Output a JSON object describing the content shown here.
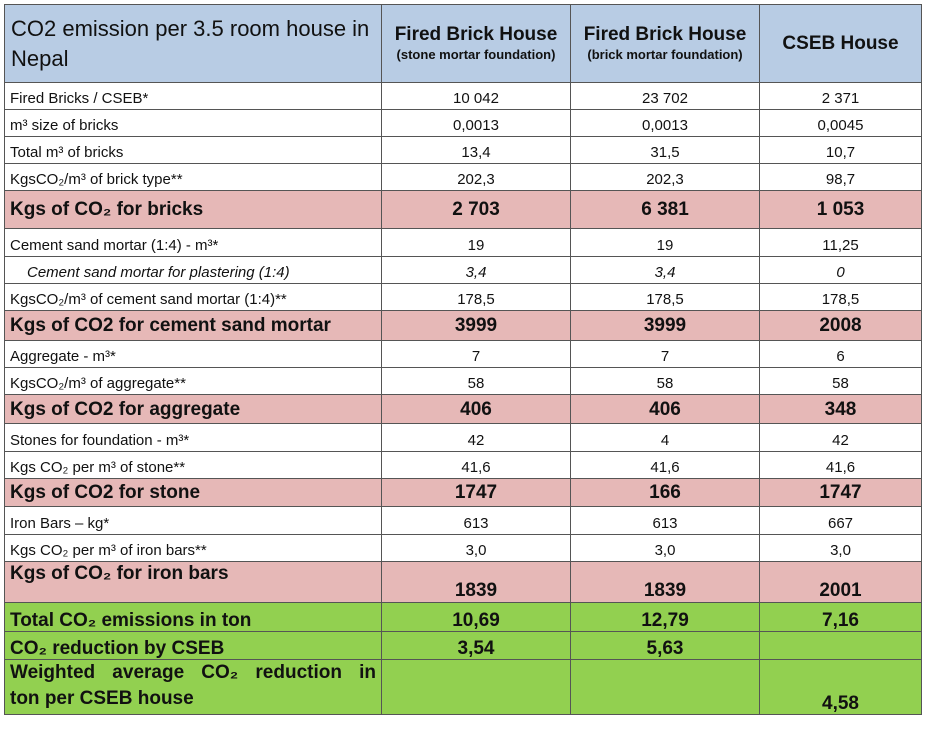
{
  "header": {
    "title": "CO2 emission per 3.5 room house in Nepal",
    "columns": [
      {
        "main": "Fired Brick House",
        "sub": "(stone mortar foundation)"
      },
      {
        "main": "Fired Brick House",
        "sub": "(brick mortar foundation)"
      },
      {
        "main": "CSEB House",
        "sub": ""
      }
    ]
  },
  "rows": [
    {
      "label": "Fired Bricks / CSEB*",
      "v": [
        "10 042",
        "23 702",
        "2 371"
      ]
    },
    {
      "label": "m³ size of bricks",
      "v": [
        "0,0013",
        "0,0013",
        "0,0045"
      ]
    },
    {
      "label": "Total m³ of bricks",
      "v": [
        "13,4",
        "31,5",
        "10,7"
      ]
    },
    {
      "label": "KgsCO₂/m³ of brick type**",
      "v": [
        "202,3",
        "202,3",
        "98,7"
      ]
    },
    {
      "label": "Kgs of CO₂ for bricks",
      "v": [
        "2 703",
        "6 381",
        "1 053"
      ]
    },
    {
      "label": "Cement sand mortar (1:4) - m³*",
      "v": [
        "19",
        "19",
        "11,25"
      ]
    },
    {
      "label": "Cement sand mortar for plastering (1:4)",
      "v": [
        "3,4",
        "3,4",
        "0"
      ]
    },
    {
      "label": "KgsCO₂/m³ of cement sand mortar (1:4)**",
      "v": [
        "178,5",
        "178,5",
        "178,5"
      ]
    },
    {
      "label": "Kgs of CO2 for cement sand mortar",
      "v": [
        "3999",
        "3999",
        "2008"
      ]
    },
    {
      "label": "Aggregate - m³*",
      "v": [
        "7",
        "7",
        "6"
      ]
    },
    {
      "label": "KgsCO₂/m³ of aggregate**",
      "v": [
        "58",
        "58",
        "58"
      ]
    },
    {
      "label": "Kgs of CO2 for aggregate",
      "v": [
        "406",
        "406",
        "348"
      ]
    },
    {
      "label": "Stones for foundation - m³*",
      "v": [
        "42",
        "4",
        "42"
      ]
    },
    {
      "label": "Kgs CO₂ per m³ of stone**",
      "v": [
        "41,6",
        "41,6",
        "41,6"
      ]
    },
    {
      "label": "Kgs of CO2 for stone",
      "v": [
        "1747",
        "166",
        "1747"
      ]
    },
    {
      "label": "Iron Bars – kg*",
      "v": [
        "613",
        "613",
        "667"
      ]
    },
    {
      "label": "Kgs CO₂ per m³ of iron bars**",
      "v": [
        "3,0",
        "3,0",
        "3,0"
      ]
    },
    {
      "label": "Kgs of CO₂ for iron bars",
      "v": [
        "1839",
        "1839",
        "2001"
      ]
    }
  ],
  "totals": [
    {
      "label": "Total CO₂ emissions in ton",
      "v": [
        "10,69",
        "12,79",
        "7,16"
      ]
    },
    {
      "label": "CO₂ reduction by CSEB",
      "v": [
        "3,54",
        "5,63",
        ""
      ]
    },
    {
      "label_line1": "Weighted average CO₂ reduction in",
      "label_line2": "ton per CSEB house",
      "v": [
        "",
        "",
        "4,58"
      ]
    }
  ]
}
